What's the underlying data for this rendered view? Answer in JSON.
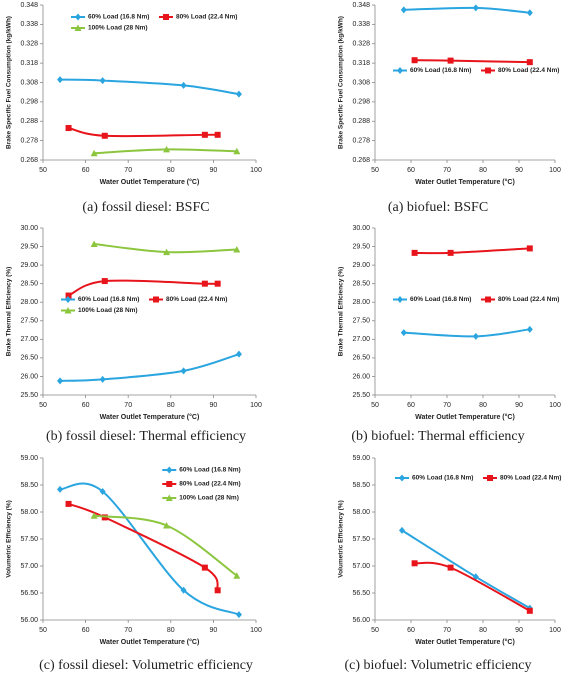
{
  "chart_data": [
    {
      "type": "line",
      "caption": "(a) fossil diesel: BSFC",
      "xlabel": "Water Outlet Temperature (°C)",
      "ylabel": "Brake Specific Fuel Consumption (kg/kWh)",
      "xlim": [
        50,
        100
      ],
      "xticks": [
        50,
        60,
        70,
        80,
        90,
        100
      ],
      "ylim": [
        0.268,
        0.348
      ],
      "yticks": [
        0.268,
        0.278,
        0.288,
        0.298,
        0.308,
        0.318,
        0.328,
        0.338,
        0.348
      ],
      "legend": "upper left",
      "smooth": true,
      "series": [
        {
          "name": "60% Load (16.8 Nm)",
          "color": "#2aa5e0",
          "marker": "diamond",
          "x": [
            54,
            64,
            83,
            96
          ],
          "values": [
            0.3095,
            0.309,
            0.3065,
            0.302
          ]
        },
        {
          "name": "80% Load (22.4 Nm)",
          "color": "#e8141b",
          "marker": "square",
          "x": [
            56,
            64.5,
            88,
            91
          ],
          "values": [
            0.2845,
            0.2805,
            0.281,
            0.281
          ]
        },
        {
          "name": "100% Load (28 Nm)",
          "color": "#8cc63f",
          "marker": "triangle",
          "x": [
            62,
            79,
            95.5
          ],
          "values": [
            0.2715,
            0.2735,
            0.2725
          ]
        }
      ]
    },
    {
      "type": "line",
      "caption": "(a) biofuel: BSFC",
      "xlabel": "Water Outlet Temperature (°C)",
      "ylabel": "Brake Specific Fuel Consumption (kg/kWh)",
      "xlim": [
        50,
        100
      ],
      "xticks": [
        50,
        60,
        70,
        80,
        90,
        100
      ],
      "ylim": [
        0.268,
        0.348
      ],
      "yticks": [
        0.268,
        0.278,
        0.288,
        0.298,
        0.308,
        0.318,
        0.328,
        0.338,
        0.348
      ],
      "legend": "center",
      "smooth": true,
      "series": [
        {
          "name": "60% Load (16.8 Nm)",
          "color": "#2aa5e0",
          "marker": "diamond",
          "x": [
            58,
            78,
            93
          ],
          "values": [
            0.3455,
            0.3465,
            0.344
          ]
        },
        {
          "name": "80% Load (22.4 Nm)",
          "color": "#e8141b",
          "marker": "square",
          "x": [
            61,
            71,
            93
          ],
          "values": [
            0.3195,
            0.3193,
            0.3185
          ]
        }
      ]
    },
    {
      "type": "line",
      "caption": "(b) fossil diesel: Thermal efficiency",
      "xlabel": "Water Outlet Temperature (°C)",
      "ylabel": "Brake Thermal Efficiency (%)",
      "xlim": [
        50,
        100
      ],
      "xticks": [
        50,
        60,
        70,
        80,
        90,
        100
      ],
      "ylim": [
        25.5,
        30
      ],
      "yticks": [
        {
          "value": 25.5,
          "label": "25.50"
        },
        {
          "value": 26,
          "label": "26.00"
        },
        {
          "value": 26.5,
          "label": "26.50"
        },
        {
          "value": 27,
          "label": "27.00"
        },
        {
          "value": 27.5,
          "label": "27.50"
        },
        {
          "value": 28,
          "label": "28.00"
        },
        {
          "value": 28.5,
          "label": "28.50"
        },
        {
          "value": 29,
          "label": "29.00"
        },
        {
          "value": 29.5,
          "label": "29.50"
        },
        {
          "value": 30,
          "label": "30.00"
        }
      ],
      "legend": "center",
      "smooth": true,
      "series": [
        {
          "name": "60% Load (16.8 Nm)",
          "color": "#2aa5e0",
          "marker": "diamond",
          "x": [
            54,
            64,
            83,
            96
          ],
          "values": [
            25.88,
            25.92,
            26.15,
            26.6
          ]
        },
        {
          "name": "80% Load (22.4 Nm)",
          "color": "#e8141b",
          "marker": "square",
          "x": [
            56,
            64.5,
            88,
            91
          ],
          "values": [
            28.18,
            28.57,
            28.5,
            28.5
          ]
        },
        {
          "name": "100% Load (28 Nm)",
          "color": "#8cc63f",
          "marker": "triangle",
          "x": [
            62,
            79,
            95.5
          ],
          "values": [
            29.57,
            29.35,
            29.42
          ]
        }
      ]
    },
    {
      "type": "line",
      "caption": "(b) biofuel: Thermal efficiency",
      "xlabel": "Water Outlet Temperature (°C)",
      "ylabel": "Brake Thermal Efficiency (%)",
      "xlim": [
        50,
        100
      ],
      "xticks": [
        50,
        60,
        70,
        80,
        90,
        100
      ],
      "ylim": [
        25.5,
        30
      ],
      "yticks": [
        {
          "value": 25.5,
          "label": "25.50"
        },
        {
          "value": 26,
          "label": "26.00"
        },
        {
          "value": 26.5,
          "label": "26.50"
        },
        {
          "value": 27,
          "label": "27.00"
        },
        {
          "value": 27.5,
          "label": "27.50"
        },
        {
          "value": 28,
          "label": "28.00"
        },
        {
          "value": 28.5,
          "label": "28.50"
        },
        {
          "value": 29,
          "label": "29.00"
        },
        {
          "value": 29.5,
          "label": "29.50"
        },
        {
          "value": 30,
          "label": "30.00"
        }
      ],
      "legend": "center",
      "smooth": true,
      "series": [
        {
          "name": "60% Load (16.8 Nm)",
          "color": "#2aa5e0",
          "marker": "diamond",
          "x": [
            58,
            78,
            93
          ],
          "values": [
            27.18,
            27.08,
            27.27
          ]
        },
        {
          "name": "80% Load (22.4 Nm)",
          "color": "#e8141b",
          "marker": "square",
          "x": [
            61,
            71,
            93
          ],
          "values": [
            29.33,
            29.33,
            29.45
          ]
        }
      ]
    },
    {
      "type": "line",
      "caption": "(c) fossil diesel: Volumetric efficiency",
      "xlabel": "Water Outlet Temperature (°C)",
      "ylabel": "Volumetric Efficiency (%)",
      "xlim": [
        50,
        100
      ],
      "xticks": [
        50,
        60,
        70,
        80,
        90,
        100
      ],
      "ylim": [
        56,
        59
      ],
      "yticks": [
        {
          "value": 56,
          "label": "56.00"
        },
        {
          "value": 56.5,
          "label": "56.50"
        },
        {
          "value": 57,
          "label": "57.00"
        },
        {
          "value": 57.5,
          "label": "57.50"
        },
        {
          "value": 58,
          "label": "58.00"
        },
        {
          "value": 58.5,
          "label": "58.50"
        },
        {
          "value": 59,
          "label": "59.00"
        }
      ],
      "legend": "upper right",
      "smooth": true,
      "series": [
        {
          "name": "60% Load (16.8 Nm)",
          "color": "#2aa5e0",
          "marker": "diamond",
          "x": [
            54,
            64,
            83,
            96
          ],
          "values": [
            58.42,
            58.38,
            56.55,
            56.1
          ]
        },
        {
          "name": "80% Load (22.4 Nm)",
          "color": "#e8141b",
          "marker": "square",
          "x": [
            56,
            64.5,
            88,
            91
          ],
          "values": [
            58.15,
            57.9,
            56.97,
            56.55
          ]
        },
        {
          "name": "100% Load (28 Nm)",
          "color": "#8cc63f",
          "marker": "triangle",
          "x": [
            62,
            79,
            95.5
          ],
          "values": [
            57.93,
            57.75,
            56.82
          ]
        }
      ]
    },
    {
      "type": "line",
      "caption": "(c) biofuel: Volumetric efficiency",
      "xlabel": "Water Outlet Temperature (°C)",
      "ylabel": "Volumetric Efficiency (%)",
      "xlim": [
        50,
        100
      ],
      "xticks": [
        50,
        60,
        70,
        80,
        90,
        100
      ],
      "ylim": [
        56,
        59
      ],
      "yticks": [
        {
          "value": 56,
          "label": "56.00"
        },
        {
          "value": 56.5,
          "label": "56.50"
        },
        {
          "value": 57,
          "label": "57.00"
        },
        {
          "value": 57.5,
          "label": "57.50"
        },
        {
          "value": 58,
          "label": "58.00"
        },
        {
          "value": 58.5,
          "label": "58.50"
        },
        {
          "value": 59,
          "label": "59.00"
        }
      ],
      "legend": "upper center",
      "smooth": true,
      "series": [
        {
          "name": "60% Load (16.8 Nm)",
          "color": "#2aa5e0",
          "marker": "diamond",
          "x": [
            57.5,
            78,
            93
          ],
          "values": [
            57.66,
            56.8,
            56.22
          ]
        },
        {
          "name": "80% Load (22.4 Nm)",
          "color": "#e8141b",
          "marker": "square",
          "x": [
            61,
            71,
            93
          ],
          "values": [
            57.05,
            56.97,
            56.17
          ]
        }
      ]
    }
  ]
}
